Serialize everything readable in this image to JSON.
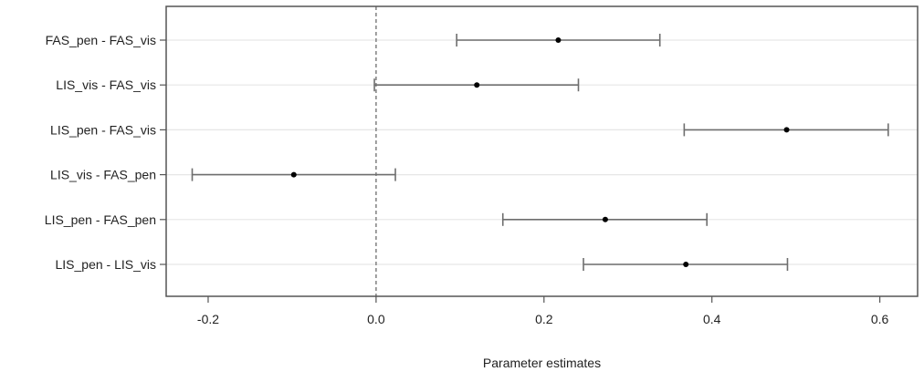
{
  "chart_data": {
    "type": "forest",
    "title": "",
    "xlabel": "Parameter estimates",
    "ylabel": "",
    "xlim": [
      -0.25,
      0.645
    ],
    "xticks": [
      "-0.2",
      "0.0",
      "0.2",
      "0.4",
      "0.6"
    ],
    "xtick_values": [
      -0.2,
      0.0,
      0.2,
      0.4,
      0.6
    ],
    "reference_line": 0.0,
    "grid": "horizontal",
    "series": [
      {
        "categories": [
          "FAS_pen - FAS_vis",
          "LIS_vis - FAS_vis",
          "LIS_pen - FAS_vis",
          "LIS_vis - FAS_pen",
          "LIS_pen - FAS_pen",
          "LIS_pen - LIS_vis"
        ],
        "estimate": [
          0.217,
          0.12,
          0.489,
          -0.098,
          0.273,
          0.369
        ],
        "lower": [
          0.096,
          -0.002,
          0.367,
          -0.219,
          0.151,
          0.247
        ],
        "upper": [
          0.338,
          0.241,
          0.61,
          0.023,
          0.394,
          0.49
        ]
      }
    ],
    "colors": {
      "interval": "#6e6e6e",
      "point": "#000000",
      "reference": "#888888",
      "grid": "#e6e6e6",
      "frame": "#555555"
    }
  }
}
